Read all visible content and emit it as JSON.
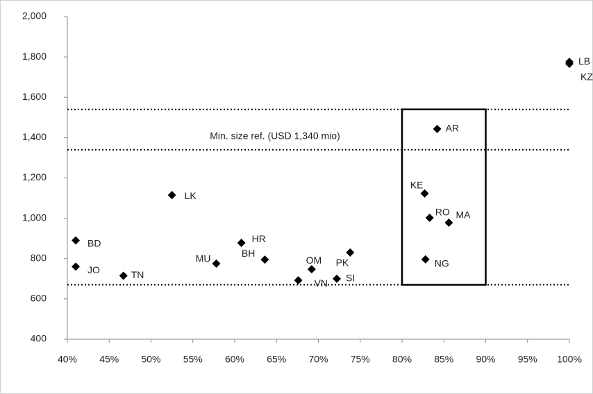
{
  "chart_data": {
    "type": "scatter",
    "labels": [
      "BD",
      "JO",
      "TN",
      "LK",
      "MU",
      "HR",
      "BH",
      "VN",
      "OM",
      "SI",
      "PK",
      "KE",
      "RO",
      "MA",
      "NG",
      "AR",
      "LB",
      "KZ"
    ],
    "x": [
      41,
      41,
      46.7,
      52.5,
      57.8,
      60.8,
      63.6,
      67.6,
      69.2,
      72.2,
      73.8,
      82.7,
      83.3,
      85.6,
      82.8,
      84.2,
      100,
      100
    ],
    "values": [
      890,
      760,
      715,
      1115,
      775,
      878,
      795,
      692,
      747,
      700,
      830,
      1123,
      1002,
      978,
      796,
      1443,
      1776,
      1766
    ],
    "color": "#000000",
    "xlim": [
      40,
      100
    ],
    "xticks": [
      {
        "value": 40,
        "label": "40%"
      },
      {
        "value": 45,
        "label": "45%"
      },
      {
        "value": 50,
        "label": "50%"
      },
      {
        "value": 55,
        "label": "55%"
      },
      {
        "value": 60,
        "label": "60%"
      },
      {
        "value": 65,
        "label": "65%"
      },
      {
        "value": 70,
        "label": "70%"
      },
      {
        "value": 75,
        "label": "75%"
      },
      {
        "value": 80,
        "label": "80%"
      },
      {
        "value": 85,
        "label": "85%"
      },
      {
        "value": 90,
        "label": "90%"
      },
      {
        "value": 95,
        "label": "95%"
      },
      {
        "value": 100,
        "label": "100%"
      }
    ],
    "ylim": [
      400,
      2000
    ],
    "yticks": [
      400,
      600,
      800,
      {
        "value": 1000,
        "label": "1,000"
      },
      {
        "value": 1200,
        "label": "1,200"
      },
      {
        "value": 1400,
        "label": "1,400"
      },
      {
        "value": 1600,
        "label": "1,600"
      },
      {
        "value": 1800,
        "label": "1,800"
      },
      {
        "value": 2000,
        "label": "2,000"
      }
    ],
    "reference_lines": [
      1540,
      1340,
      670
    ],
    "annotation": "Min. size ref. (USD 1,340 mio)",
    "highlight_box": {
      "xlim": [
        80,
        90
      ],
      "ylim": [
        670,
        1540
      ]
    }
  }
}
